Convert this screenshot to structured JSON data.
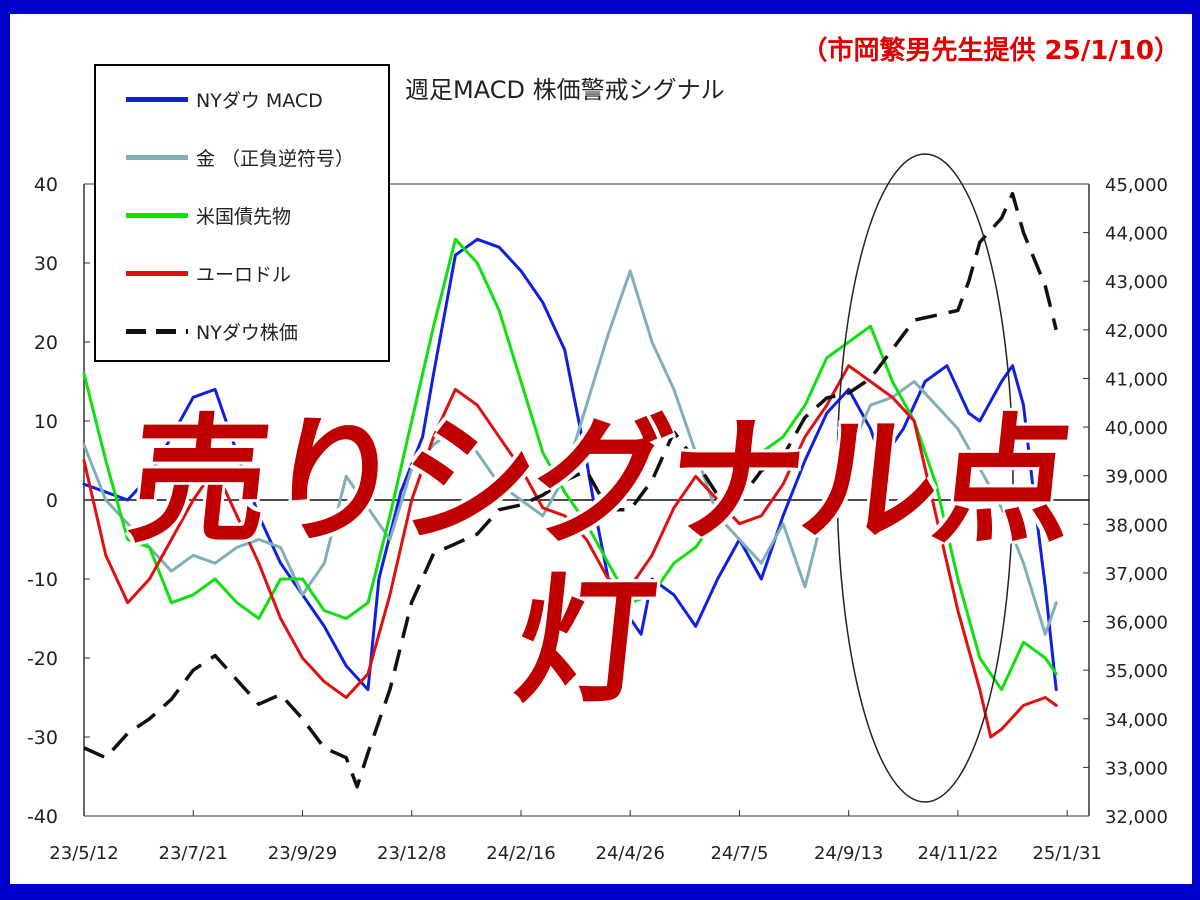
{
  "slide": {
    "frame_color": "#0000cc",
    "credit": "（市岡繁男先生提供 25/1/10）"
  },
  "overlay": {
    "text": "売りシグナル点灯",
    "color": "#c00000"
  },
  "chart_data": {
    "type": "line",
    "title": "週足MACD 株価警戒シグナル",
    "x_tick_labels": [
      "23/5/12",
      "23/7/21",
      "23/9/29",
      "23/12/8",
      "24/2/16",
      "24/4/26",
      "24/7/5",
      "24/9/13",
      "24/11/22",
      "25/1/31"
    ],
    "x_range": [
      "23/5/12",
      "25/1/31"
    ],
    "y_left": {
      "ylim": [
        -40,
        40
      ],
      "ticks": [
        "40",
        "30",
        "20",
        "10",
        "0",
        "-10",
        "-20",
        "-30",
        "-40"
      ]
    },
    "y_right": {
      "ylim": [
        32000,
        45000
      ],
      "ticks": [
        "45,000",
        "44,000",
        "43,000",
        "42,000",
        "41,000",
        "40,000",
        "39,000",
        "38,000",
        "37,000",
        "36,000",
        "35,000",
        "34,000",
        "33,000",
        "32,000"
      ]
    },
    "grid": false,
    "legend_placement": "top-left",
    "highlight": "ellipse around late 2024 – early 2025",
    "series": [
      {
        "name": "NYダウ MACD",
        "color": "#1020e0",
        "axis": "left",
        "style": "solid",
        "values": [
          [
            0,
            2
          ],
          [
            4,
            0
          ],
          [
            6,
            3
          ],
          [
            10,
            13
          ],
          [
            12,
            14
          ],
          [
            14,
            6
          ],
          [
            16,
            -2
          ],
          [
            18,
            -8
          ],
          [
            20,
            -12
          ],
          [
            22,
            -16
          ],
          [
            24,
            -21
          ],
          [
            26,
            -24
          ],
          [
            27,
            -10
          ],
          [
            29,
            1
          ],
          [
            31,
            8
          ],
          [
            32,
            16
          ],
          [
            34,
            31
          ],
          [
            36,
            33
          ],
          [
            38,
            32
          ],
          [
            40,
            29
          ],
          [
            42,
            25
          ],
          [
            44,
            19
          ],
          [
            46,
            5
          ],
          [
            47,
            -3
          ],
          [
            48,
            -10
          ],
          [
            50,
            -15
          ],
          [
            51,
            -17
          ],
          [
            52,
            -10
          ],
          [
            54,
            -12
          ],
          [
            56,
            -16
          ],
          [
            58,
            -10
          ],
          [
            60,
            -5
          ],
          [
            62,
            -10
          ],
          [
            64,
            -2
          ],
          [
            66,
            5
          ],
          [
            68,
            11
          ],
          [
            70,
            14
          ],
          [
            72,
            9
          ],
          [
            73,
            5
          ],
          [
            75,
            9
          ],
          [
            77,
            15
          ],
          [
            79,
            17
          ],
          [
            81,
            11
          ],
          [
            82,
            10
          ],
          [
            84,
            15
          ],
          [
            85,
            17
          ],
          [
            86,
            12
          ],
          [
            87,
            0
          ],
          [
            88,
            -11
          ],
          [
            89,
            -24
          ]
        ]
      },
      {
        "name": "金 （正負逆符号）",
        "color": "#7fb0b8",
        "axis": "left",
        "style": "solid",
        "values": [
          [
            0,
            7
          ],
          [
            2,
            0
          ],
          [
            4,
            -3
          ],
          [
            6,
            -6
          ],
          [
            8,
            -9
          ],
          [
            10,
            -7
          ],
          [
            12,
            -8
          ],
          [
            14,
            -6
          ],
          [
            16,
            -5
          ],
          [
            18,
            -6
          ],
          [
            20,
            -12
          ],
          [
            22,
            -8
          ],
          [
            24,
            3
          ],
          [
            26,
            -1
          ],
          [
            28,
            -5
          ],
          [
            30,
            4
          ],
          [
            32,
            7
          ],
          [
            34,
            9
          ],
          [
            36,
            6
          ],
          [
            38,
            2
          ],
          [
            40,
            0
          ],
          [
            42,
            -2
          ],
          [
            44,
            3
          ],
          [
            46,
            12
          ],
          [
            48,
            21
          ],
          [
            50,
            29
          ],
          [
            52,
            20
          ],
          [
            54,
            14
          ],
          [
            56,
            6
          ],
          [
            58,
            -2
          ],
          [
            60,
            -5
          ],
          [
            62,
            -8
          ],
          [
            64,
            -3
          ],
          [
            66,
            -11
          ],
          [
            68,
            0
          ],
          [
            70,
            6
          ],
          [
            72,
            12
          ],
          [
            74,
            13
          ],
          [
            76,
            15
          ],
          [
            78,
            12
          ],
          [
            80,
            9
          ],
          [
            82,
            4
          ],
          [
            84,
            -1
          ],
          [
            86,
            -8
          ],
          [
            88,
            -17
          ],
          [
            89,
            -13
          ]
        ]
      },
      {
        "name": "米国債先物",
        "color": "#10e010",
        "axis": "left",
        "style": "solid",
        "values": [
          [
            0,
            16
          ],
          [
            2,
            5
          ],
          [
            4,
            -5
          ],
          [
            6,
            -6
          ],
          [
            8,
            -13
          ],
          [
            10,
            -12
          ],
          [
            12,
            -10
          ],
          [
            14,
            -13
          ],
          [
            16,
            -15
          ],
          [
            18,
            -10
          ],
          [
            20,
            -10
          ],
          [
            22,
            -14
          ],
          [
            24,
            -15
          ],
          [
            26,
            -13
          ],
          [
            28,
            -2
          ],
          [
            30,
            10
          ],
          [
            32,
            22
          ],
          [
            34,
            33
          ],
          [
            36,
            30
          ],
          [
            38,
            24
          ],
          [
            40,
            15
          ],
          [
            42,
            6
          ],
          [
            44,
            1
          ],
          [
            46,
            -3
          ],
          [
            48,
            -8
          ],
          [
            50,
            -13
          ],
          [
            52,
            -12
          ],
          [
            54,
            -8
          ],
          [
            56,
            -6
          ],
          [
            58,
            -2
          ],
          [
            60,
            4
          ],
          [
            62,
            6
          ],
          [
            64,
            8
          ],
          [
            66,
            12
          ],
          [
            68,
            18
          ],
          [
            70,
            20
          ],
          [
            72,
            22
          ],
          [
            74,
            15
          ],
          [
            76,
            10
          ],
          [
            78,
            2
          ],
          [
            80,
            -10
          ],
          [
            82,
            -20
          ],
          [
            84,
            -24
          ],
          [
            86,
            -18
          ],
          [
            88,
            -20
          ],
          [
            89,
            -22
          ]
        ]
      },
      {
        "name": "ユーロドル",
        "color": "#e01010",
        "axis": "left",
        "style": "solid",
        "values": [
          [
            0,
            5
          ],
          [
            2,
            -7
          ],
          [
            4,
            -13
          ],
          [
            6,
            -10
          ],
          [
            8,
            -5
          ],
          [
            10,
            0
          ],
          [
            12,
            4
          ],
          [
            14,
            -2
          ],
          [
            16,
            -8
          ],
          [
            18,
            -15
          ],
          [
            20,
            -20
          ],
          [
            22,
            -23
          ],
          [
            24,
            -25
          ],
          [
            26,
            -22
          ],
          [
            28,
            -12
          ],
          [
            30,
            0
          ],
          [
            32,
            8
          ],
          [
            34,
            14
          ],
          [
            36,
            12
          ],
          [
            38,
            8
          ],
          [
            40,
            4
          ],
          [
            42,
            -1
          ],
          [
            44,
            -2
          ],
          [
            46,
            -5
          ],
          [
            48,
            -10
          ],
          [
            50,
            -11
          ],
          [
            52,
            -7
          ],
          [
            54,
            -1
          ],
          [
            56,
            3
          ],
          [
            58,
            0
          ],
          [
            60,
            -3
          ],
          [
            62,
            -2
          ],
          [
            64,
            2
          ],
          [
            66,
            8
          ],
          [
            68,
            12
          ],
          [
            70,
            17
          ],
          [
            72,
            15
          ],
          [
            74,
            13
          ],
          [
            76,
            10
          ],
          [
            78,
            -2
          ],
          [
            80,
            -14
          ],
          [
            82,
            -24
          ],
          [
            83,
            -30
          ],
          [
            84,
            -29
          ],
          [
            86,
            -26
          ],
          [
            88,
            -25
          ],
          [
            89,
            -26
          ]
        ]
      },
      {
        "name": "NYダウ株価",
        "color": "#111111",
        "axis": "right",
        "style": "dashed",
        "values": [
          [
            0,
            33400
          ],
          [
            2,
            33200
          ],
          [
            4,
            33700
          ],
          [
            6,
            34000
          ],
          [
            8,
            34400
          ],
          [
            10,
            35000
          ],
          [
            12,
            35300
          ],
          [
            14,
            34800
          ],
          [
            16,
            34300
          ],
          [
            18,
            34500
          ],
          [
            20,
            34000
          ],
          [
            22,
            33400
          ],
          [
            24,
            33200
          ],
          [
            25,
            32600
          ],
          [
            26,
            33300
          ],
          [
            28,
            34600
          ],
          [
            30,
            36400
          ],
          [
            32,
            37400
          ],
          [
            34,
            37600
          ],
          [
            36,
            37800
          ],
          [
            38,
            38300
          ],
          [
            40,
            38400
          ],
          [
            42,
            38600
          ],
          [
            44,
            38900
          ],
          [
            46,
            39100
          ],
          [
            48,
            38300
          ],
          [
            50,
            38300
          ],
          [
            52,
            38900
          ],
          [
            54,
            39900
          ],
          [
            56,
            39300
          ],
          [
            58,
            38600
          ],
          [
            60,
            38500
          ],
          [
            62,
            39100
          ],
          [
            64,
            39400
          ],
          [
            66,
            40200
          ],
          [
            68,
            40600
          ],
          [
            70,
            40700
          ],
          [
            72,
            41000
          ],
          [
            74,
            41600
          ],
          [
            76,
            42200
          ],
          [
            78,
            42300
          ],
          [
            80,
            42400
          ],
          [
            81,
            43000
          ],
          [
            82,
            43800
          ],
          [
            84,
            44300
          ],
          [
            85,
            44800
          ],
          [
            86,
            44000
          ],
          [
            88,
            42900
          ],
          [
            89,
            42000
          ]
        ]
      }
    ]
  }
}
